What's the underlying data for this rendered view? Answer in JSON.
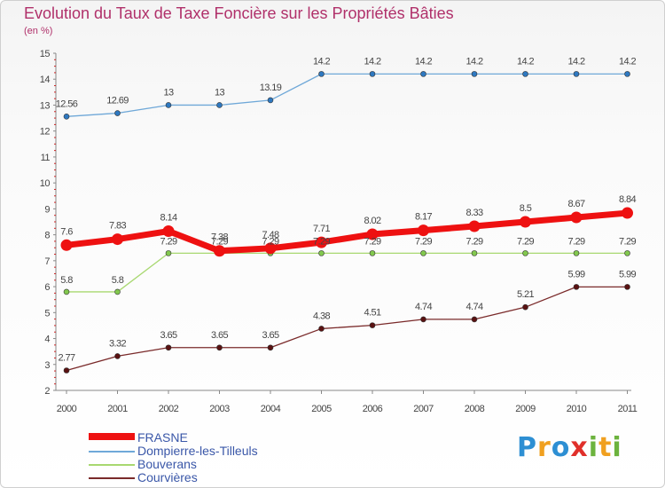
{
  "chart_data": {
    "type": "line",
    "title": "Evolution du Taux de Taxe Foncière sur les Propriétés Bâties",
    "ylabel": "(en %)",
    "xlabel": "",
    "categories": [
      "2000",
      "2001",
      "2002",
      "2003",
      "2004",
      "2005",
      "2006",
      "2007",
      "2008",
      "2009",
      "2010",
      "2011"
    ],
    "ylim": [
      2,
      15
    ],
    "yticks": [
      "2",
      "3",
      "4",
      "5",
      "6",
      "7",
      "8",
      "9",
      "10",
      "11",
      "12",
      "13",
      "14",
      "15"
    ],
    "grid": false,
    "legend_position": "bottom-left",
    "series": [
      {
        "name": "Dompierre-les-Tilleuls",
        "color": "#5f9fd0",
        "marker_color": "#2e78c0",
        "values": [
          12.56,
          12.69,
          13,
          13,
          13.19,
          14.2,
          14.2,
          14.2,
          14.2,
          14.2,
          14.2,
          14.2
        ],
        "labels": [
          "12.56",
          "12.69",
          "13",
          "13",
          "13.19",
          "14.2",
          "14.2",
          "14.2",
          "14.2",
          "14.2",
          "14.2",
          "14.2"
        ]
      },
      {
        "name": "Bouverans",
        "color": "#9ed66a",
        "marker_color": "#82c84e",
        "values": [
          5.8,
          5.8,
          7.29,
          7.29,
          7.29,
          7.29,
          7.29,
          7.29,
          7.29,
          7.29,
          7.29,
          7.29
        ],
        "labels": [
          "5.8",
          "5.8",
          "7.29",
          "7.29",
          "7.29",
          "7.29",
          "7.29",
          "7.29",
          "7.29",
          "7.29",
          "7.29",
          "7.29"
        ]
      },
      {
        "name": "Courvières",
        "color": "#7a2a2a",
        "marker_color": "#5a1212",
        "values": [
          2.77,
          3.32,
          3.65,
          3.65,
          3.65,
          4.38,
          4.51,
          4.74,
          4.74,
          5.21,
          5.99,
          5.99
        ],
        "labels": [
          "2.77",
          "3.32",
          "3.65",
          "3.65",
          "3.65",
          "4.38",
          "4.51",
          "4.74",
          "4.74",
          "5.21",
          "5.99",
          "5.99"
        ]
      },
      {
        "name": "FRASNE",
        "color": "#ee1111",
        "marker_color": "#ee1111",
        "values": [
          7.6,
          7.83,
          8.14,
          7.38,
          7.48,
          7.71,
          8.02,
          8.17,
          8.33,
          8.5,
          8.67,
          8.84
        ],
        "labels": [
          "7.6",
          "7.83",
          "8.14",
          "7.38",
          "7.48",
          "7.71",
          "8.02",
          "8.17",
          "8.33",
          "8.5",
          "8.67",
          "8.84"
        ]
      }
    ],
    "legend": [
      "FRASNE",
      "Dompierre-les-Tilleuls",
      "Bouverans",
      "Courvières"
    ]
  },
  "colors": {
    "title": "#b0306a",
    "axis": "#888888",
    "tick_mark": "#cc2222",
    "label_text": "#444444",
    "legend_text": "#3a57a8",
    "frasne": "#ee1111",
    "dompierre": "#6fa8d8",
    "bouverans": "#a8d870",
    "courvieres": "#7a2a2a"
  },
  "logo": {
    "letters": [
      "P",
      "r",
      "o",
      "x",
      "i",
      "t",
      "i"
    ],
    "colors": [
      "#2d8fd3",
      "#f0a020",
      "#2d8fd3",
      "#e0302a",
      "#6cb33e",
      "#f0a020",
      "#6cb33e"
    ]
  }
}
